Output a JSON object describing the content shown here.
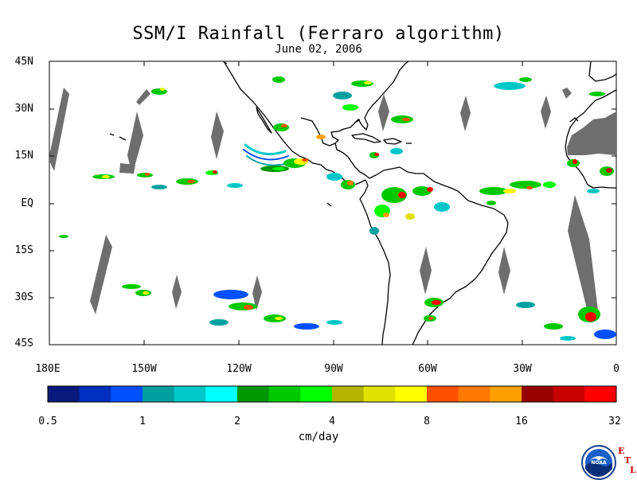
{
  "title": "SSM/I Rainfall (Ferraro algorithm)",
  "subtitle": "June 02, 2006",
  "lat_labels": [
    "45N",
    "30N",
    "15N",
    "EQ",
    "15S",
    "30S",
    "45S"
  ],
  "lon_labels": [
    "180E",
    "150W",
    "120W",
    "90W",
    "60W",
    "30W",
    "0"
  ],
  "colorbar": {
    "colors": [
      "#0a1a7a",
      "#0030c0",
      "#0050ff",
      "#00a0a0",
      "#00c8c8",
      "#00ffff",
      "#009600",
      "#00c800",
      "#00ff00",
      "#b4b400",
      "#e1e100",
      "#ffff00",
      "#ff5000",
      "#ff7800",
      "#ffa000",
      "#960000",
      "#c80000",
      "#ff0000"
    ],
    "tick_labels": [
      "0.5",
      "1",
      "2",
      "4",
      "8",
      "16",
      "32"
    ],
    "units": "cm/day"
  },
  "logo": {
    "icon": "noaa-logo",
    "text": "NOAA",
    "etl": [
      "E",
      "T",
      "L"
    ]
  }
}
